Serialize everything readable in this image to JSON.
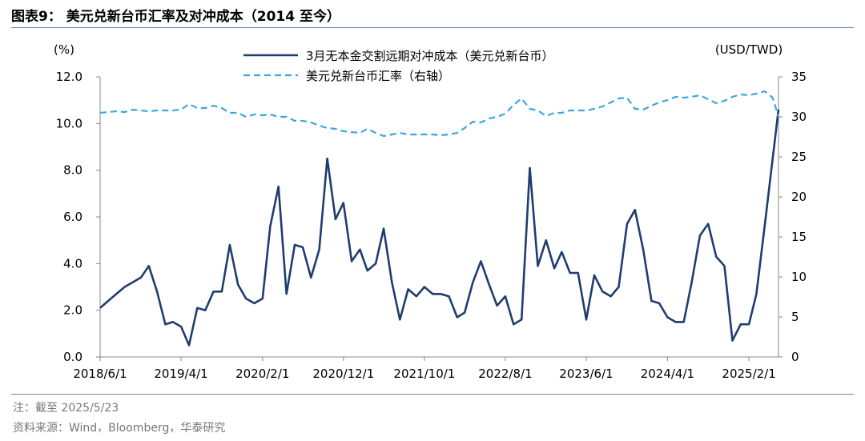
{
  "figure": {
    "title": "图表9：  美元兑新台币汇率及对冲成本（2014 至今）",
    "note": "注：截至 2025/5/23",
    "source": "资料来源：Wind，Bloomberg，华泰研究"
  },
  "chart_data": {
    "type": "line",
    "left_axis_label": "(%)",
    "right_axis_label": "(USD/TWD)",
    "ylim_left": [
      0,
      12
    ],
    "ylim_right": [
      0,
      35
    ],
    "yticks_left": [
      "0.0",
      "2.0",
      "4.0",
      "6.0",
      "8.0",
      "10.0",
      "12.0"
    ],
    "yticks_right": [
      "0",
      "5",
      "10",
      "15",
      "20",
      "25",
      "30",
      "35"
    ],
    "x_range": [
      "2018-06-01",
      "2025-05-23"
    ],
    "x_ticks": [
      "2018/6/1",
      "2019/4/1",
      "2020/2/1",
      "2020/12/1",
      "2021/10/1",
      "2022/8/1",
      "2023/6/1",
      "2024/4/1",
      "2025/2/1"
    ],
    "legend_position": "top-center",
    "colors": {
      "hedge_cost": "#1f3d6e",
      "fx": "#3ba7e0",
      "axis": "#8a8a8a"
    },
    "series": [
      {
        "name": "3月无本金交割远期对冲成本（美元兑新台币）",
        "axis": "left",
        "style": "solid",
        "points": [
          [
            "2018-06-01",
            2.1
          ],
          [
            "2018-07-01",
            2.4
          ],
          [
            "2018-08-01",
            2.7
          ],
          [
            "2018-09-01",
            3.0
          ],
          [
            "2018-10-01",
            3.2
          ],
          [
            "2018-11-01",
            3.4
          ],
          [
            "2018-12-01",
            3.9
          ],
          [
            "2019-01-01",
            2.8
          ],
          [
            "2019-02-01",
            1.4
          ],
          [
            "2019-03-01",
            1.5
          ],
          [
            "2019-04-01",
            1.3
          ],
          [
            "2019-05-01",
            0.5
          ],
          [
            "2019-06-01",
            2.1
          ],
          [
            "2019-07-01",
            2.0
          ],
          [
            "2019-08-01",
            2.8
          ],
          [
            "2019-09-01",
            2.8
          ],
          [
            "2019-10-01",
            4.8
          ],
          [
            "2019-11-01",
            3.1
          ],
          [
            "2019-12-01",
            2.5
          ],
          [
            "2020-01-01",
            2.3
          ],
          [
            "2020-02-01",
            2.5
          ],
          [
            "2020-03-01",
            5.6
          ],
          [
            "2020-04-01",
            7.3
          ],
          [
            "2020-05-01",
            2.7
          ],
          [
            "2020-06-01",
            4.8
          ],
          [
            "2020-07-01",
            4.7
          ],
          [
            "2020-08-01",
            3.4
          ],
          [
            "2020-09-01",
            4.6
          ],
          [
            "2020-10-01",
            8.5
          ],
          [
            "2020-11-01",
            5.9
          ],
          [
            "2020-12-01",
            6.6
          ],
          [
            "2021-01-01",
            4.1
          ],
          [
            "2021-02-01",
            4.6
          ],
          [
            "2021-03-01",
            3.7
          ],
          [
            "2021-04-01",
            4.0
          ],
          [
            "2021-05-01",
            5.5
          ],
          [
            "2021-06-01",
            3.2
          ],
          [
            "2021-07-01",
            1.6
          ],
          [
            "2021-08-01",
            2.9
          ],
          [
            "2021-09-01",
            2.6
          ],
          [
            "2021-10-01",
            3.0
          ],
          [
            "2021-11-01",
            2.7
          ],
          [
            "2021-12-01",
            2.7
          ],
          [
            "2022-01-01",
            2.6
          ],
          [
            "2022-02-01",
            1.7
          ],
          [
            "2022-03-01",
            1.9
          ],
          [
            "2022-04-01",
            3.2
          ],
          [
            "2022-05-01",
            4.1
          ],
          [
            "2022-06-01",
            3.1
          ],
          [
            "2022-07-01",
            2.2
          ],
          [
            "2022-08-01",
            2.6
          ],
          [
            "2022-09-01",
            1.4
          ],
          [
            "2022-10-01",
            1.6
          ],
          [
            "2022-11-01",
            8.1
          ],
          [
            "2022-12-01",
            3.9
          ],
          [
            "2023-01-01",
            5.0
          ],
          [
            "2023-02-01",
            3.8
          ],
          [
            "2023-03-01",
            4.5
          ],
          [
            "2023-04-01",
            3.6
          ],
          [
            "2023-05-01",
            3.6
          ],
          [
            "2023-06-01",
            1.6
          ],
          [
            "2023-07-01",
            3.5
          ],
          [
            "2023-08-01",
            2.8
          ],
          [
            "2023-09-01",
            2.6
          ],
          [
            "2023-10-01",
            3.0
          ],
          [
            "2023-11-01",
            5.7
          ],
          [
            "2023-12-01",
            6.3
          ],
          [
            "2024-01-01",
            4.6
          ],
          [
            "2024-02-01",
            2.4
          ],
          [
            "2024-03-01",
            2.3
          ],
          [
            "2024-04-01",
            1.7
          ],
          [
            "2024-05-01",
            1.5
          ],
          [
            "2024-06-01",
            1.5
          ],
          [
            "2024-07-01",
            3.2
          ],
          [
            "2024-08-01",
            5.2
          ],
          [
            "2024-09-01",
            5.7
          ],
          [
            "2024-10-01",
            4.3
          ],
          [
            "2024-11-01",
            3.9
          ],
          [
            "2024-12-01",
            0.7
          ],
          [
            "2025-01-01",
            1.4
          ],
          [
            "2025-02-01",
            1.4
          ],
          [
            "2025-03-01",
            2.7
          ],
          [
            "2025-04-01",
            5.6
          ],
          [
            "2025-05-23",
            10.6
          ]
        ]
      },
      {
        "name": "美元兑新台币汇率（右轴）",
        "axis": "right",
        "style": "dashed",
        "points": [
          [
            "2018-06-01",
            30.5
          ],
          [
            "2018-07-01",
            30.6
          ],
          [
            "2018-08-01",
            30.7
          ],
          [
            "2018-09-01",
            30.6
          ],
          [
            "2018-10-01",
            30.9
          ],
          [
            "2018-11-01",
            30.8
          ],
          [
            "2018-12-01",
            30.7
          ],
          [
            "2019-01-01",
            30.8
          ],
          [
            "2019-02-01",
            30.8
          ],
          [
            "2019-03-01",
            30.8
          ],
          [
            "2019-04-01",
            30.9
          ],
          [
            "2019-05-01",
            31.6
          ],
          [
            "2019-06-01",
            31.1
          ],
          [
            "2019-07-01",
            31.1
          ],
          [
            "2019-08-01",
            31.4
          ],
          [
            "2019-09-01",
            31.1
          ],
          [
            "2019-10-01",
            30.5
          ],
          [
            "2019-11-01",
            30.5
          ],
          [
            "2019-12-01",
            30.0
          ],
          [
            "2020-01-01",
            30.3
          ],
          [
            "2020-02-01",
            30.2
          ],
          [
            "2020-03-01",
            30.3
          ],
          [
            "2020-04-01",
            30.0
          ],
          [
            "2020-05-01",
            30.0
          ],
          [
            "2020-06-01",
            29.5
          ],
          [
            "2020-07-01",
            29.5
          ],
          [
            "2020-08-01",
            29.3
          ],
          [
            "2020-09-01",
            28.9
          ],
          [
            "2020-10-01",
            28.6
          ],
          [
            "2020-11-01",
            28.5
          ],
          [
            "2020-12-01",
            28.2
          ],
          [
            "2021-01-01",
            28.1
          ],
          [
            "2021-02-01",
            28.0
          ],
          [
            "2021-03-01",
            28.5
          ],
          [
            "2021-04-01",
            28.0
          ],
          [
            "2021-05-01",
            27.6
          ],
          [
            "2021-06-01",
            27.8
          ],
          [
            "2021-07-01",
            28.0
          ],
          [
            "2021-08-01",
            27.8
          ],
          [
            "2021-09-01",
            27.8
          ],
          [
            "2021-10-01",
            27.8
          ],
          [
            "2021-11-01",
            27.8
          ],
          [
            "2021-12-01",
            27.7
          ],
          [
            "2022-01-01",
            27.8
          ],
          [
            "2022-02-01",
            28.0
          ],
          [
            "2022-03-01",
            28.6
          ],
          [
            "2022-04-01",
            29.4
          ],
          [
            "2022-05-01",
            29.3
          ],
          [
            "2022-06-01",
            29.8
          ],
          [
            "2022-07-01",
            30.0
          ],
          [
            "2022-08-01",
            30.4
          ],
          [
            "2022-09-01",
            31.5
          ],
          [
            "2022-10-01",
            32.3
          ],
          [
            "2022-11-01",
            31.0
          ],
          [
            "2022-12-01",
            30.8
          ],
          [
            "2023-01-01",
            30.1
          ],
          [
            "2023-02-01",
            30.5
          ],
          [
            "2023-03-01",
            30.5
          ],
          [
            "2023-04-01",
            30.8
          ],
          [
            "2023-05-01",
            30.8
          ],
          [
            "2023-06-01",
            30.8
          ],
          [
            "2023-07-01",
            31.0
          ],
          [
            "2023-08-01",
            31.3
          ],
          [
            "2023-09-01",
            31.8
          ],
          [
            "2023-10-01",
            32.3
          ],
          [
            "2023-11-01",
            32.4
          ],
          [
            "2023-12-01",
            31.0
          ],
          [
            "2024-01-01",
            30.9
          ],
          [
            "2024-02-01",
            31.4
          ],
          [
            "2024-03-01",
            31.8
          ],
          [
            "2024-04-01",
            32.1
          ],
          [
            "2024-05-01",
            32.5
          ],
          [
            "2024-06-01",
            32.4
          ],
          [
            "2024-07-01",
            32.5
          ],
          [
            "2024-08-01",
            32.7
          ],
          [
            "2024-09-01",
            32.2
          ],
          [
            "2024-10-01",
            31.7
          ],
          [
            "2024-11-01",
            32.0
          ],
          [
            "2024-12-01",
            32.5
          ],
          [
            "2025-01-01",
            32.8
          ],
          [
            "2025-02-01",
            32.7
          ],
          [
            "2025-03-01",
            32.9
          ],
          [
            "2025-04-01",
            33.2
          ],
          [
            "2025-05-01",
            32.4
          ],
          [
            "2025-05-23",
            30.0
          ]
        ]
      }
    ]
  }
}
